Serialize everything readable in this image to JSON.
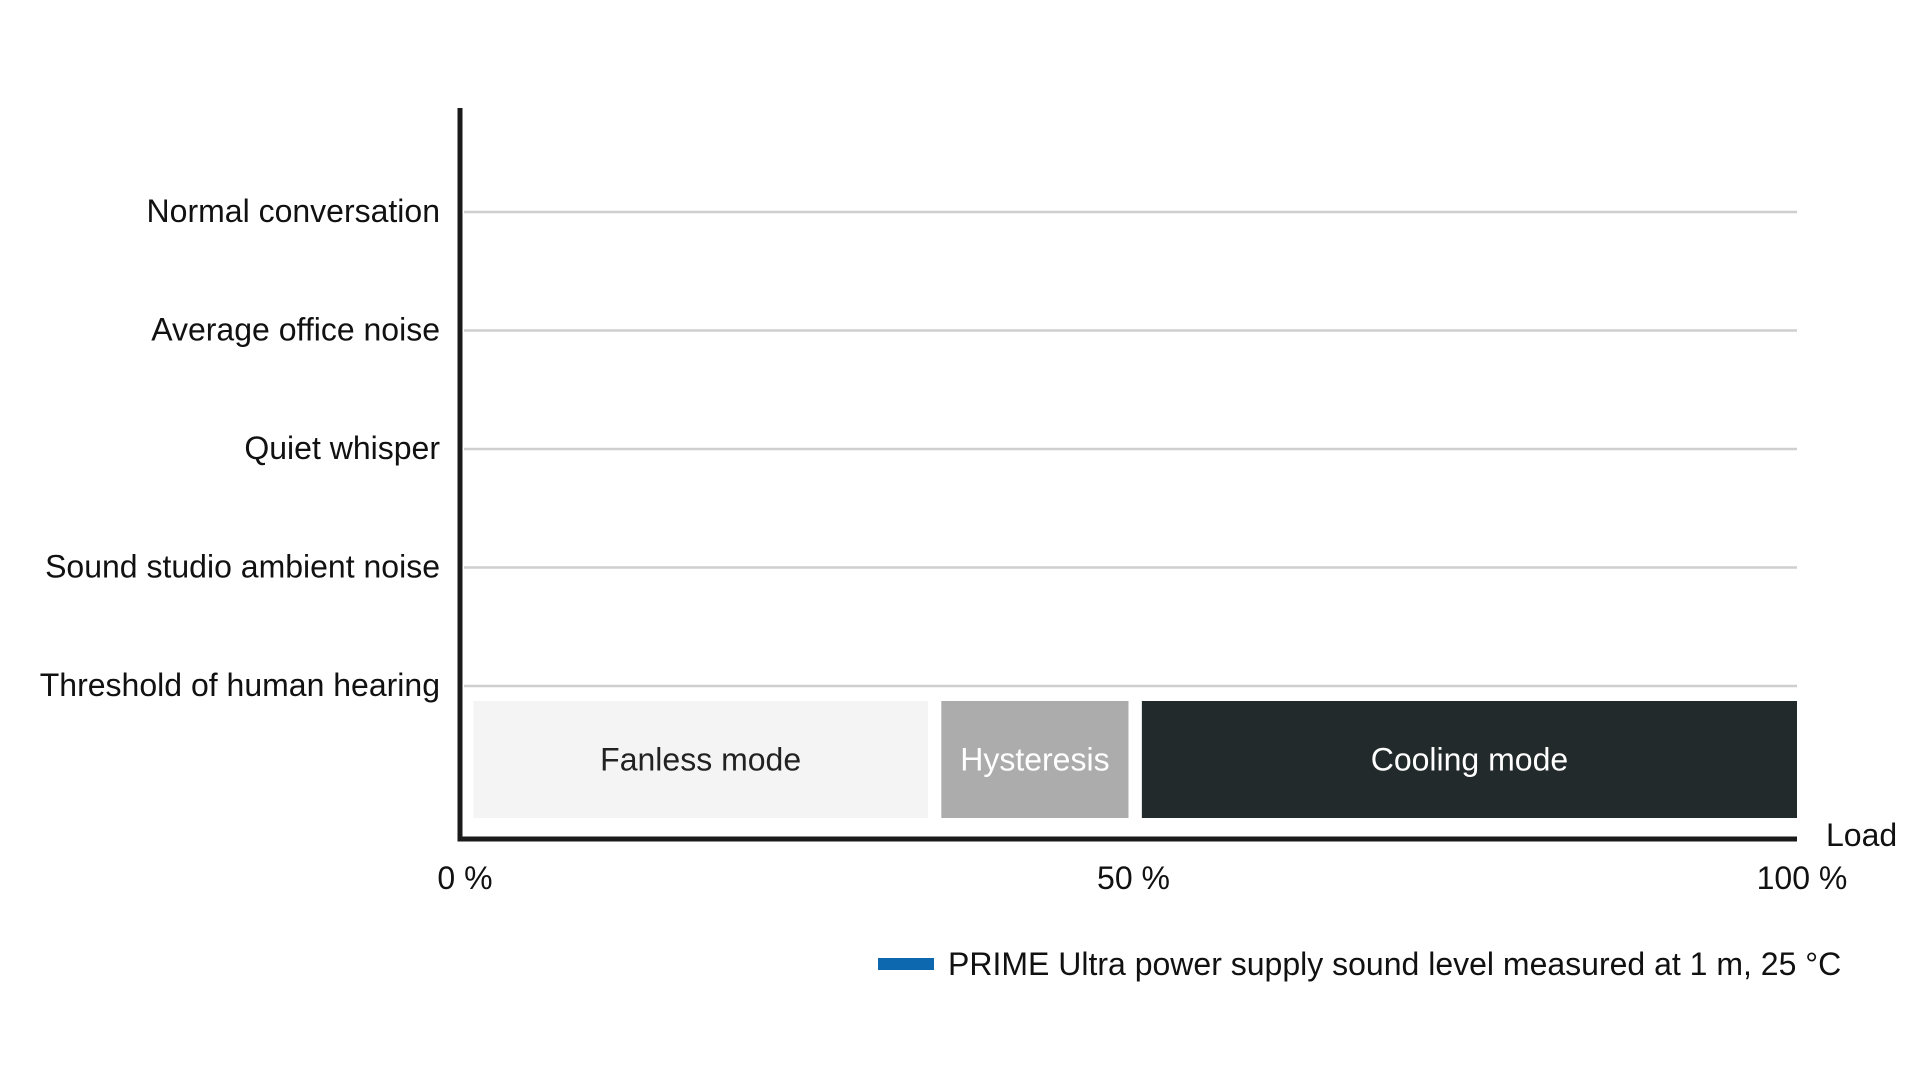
{
  "chart_data": {
    "type": "bar",
    "xlabel": "Load",
    "x_ticks": [
      "0 %",
      "50 %",
      "100 %"
    ],
    "xlim": [
      0,
      100
    ],
    "y_categories": [
      "Threshold of human hearing",
      "Sound studio ambient noise",
      "Quiet whisper",
      "Average office noise",
      "Normal conversation"
    ],
    "mode_bands": [
      {
        "label": "Fanless mode",
        "start": 1,
        "end": 35,
        "color": "#f4f4f4",
        "text_color": "#222222"
      },
      {
        "label": "Hysteresis",
        "start": 36,
        "end": 50,
        "color": "#acacac",
        "text_color": "#ffffff"
      },
      {
        "label": "Cooling mode",
        "start": 51,
        "end": 100,
        "color": "#222a2b",
        "text_color": "#ffffff"
      }
    ],
    "legend": {
      "label": "PRIME Ultra power supply sound level measured at 1 m, 25 °C",
      "color": "#0d68b0",
      "position": "bottom-right"
    },
    "grid": true
  }
}
